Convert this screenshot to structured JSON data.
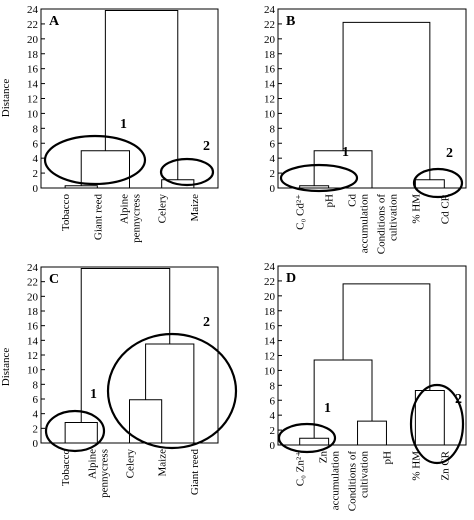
{
  "figure": {
    "y_axis_label": "Distance"
  },
  "chart_data": [
    {
      "type": "dendrogram",
      "panel_label": "A",
      "ylabel": "Distance",
      "ylim": [
        0,
        24
      ],
      "yticks": [
        0,
        2,
        4,
        6,
        8,
        10,
        12,
        14,
        16,
        18,
        20,
        22,
        24
      ],
      "leaves": [
        "Tobacco",
        "Giant reed",
        "Alpine pennycress",
        "Celery",
        "Maize"
      ],
      "merges": [
        {
          "left": "leaf:0",
          "right": "leaf:1",
          "height": 0.3
        },
        {
          "left": "node:0",
          "right": "leaf:2",
          "height": 5.0
        },
        {
          "left": "leaf:3",
          "right": "leaf:4",
          "height": 1.1
        },
        {
          "left": "node:1",
          "right": "node:2",
          "height": 23.8
        }
      ],
      "clusters": [
        {
          "label": "1",
          "members": [
            "Tobacco",
            "Giant reed",
            "Alpine pennycress"
          ]
        },
        {
          "label": "2",
          "members": [
            "Celery",
            "Maize"
          ]
        }
      ]
    },
    {
      "type": "dendrogram",
      "panel_label": "B",
      "ylabel": "Distance",
      "ylim": [
        0,
        24
      ],
      "yticks": [
        0,
        2,
        4,
        6,
        8,
        10,
        12,
        14,
        16,
        18,
        20,
        22,
        24
      ],
      "leaves": [
        "C₀ Cd²⁺",
        "pH",
        "Cd accumulation",
        "Conditions of cultivation",
        "% HM",
        "Cd CR"
      ],
      "merges": [
        {
          "left": "leaf:0",
          "right": "leaf:1",
          "height": 0.3
        },
        {
          "left": "leaf:2",
          "right": "leaf:3",
          "height": 0.0
        },
        {
          "left": "node:0",
          "right": "node:1",
          "height": 5.0
        },
        {
          "left": "leaf:4",
          "right": "leaf:5",
          "height": 1.1
        },
        {
          "left": "node:2",
          "right": "node:3",
          "height": 22.2
        }
      ],
      "clusters": [
        {
          "label": "1",
          "members": [
            "C₀ Cd²⁺",
            "pH"
          ]
        },
        {
          "label": "2",
          "members": [
            "% HM",
            "Cd CR"
          ]
        }
      ]
    },
    {
      "type": "dendrogram",
      "panel_label": "C",
      "ylabel": "Distance",
      "ylim": [
        0,
        24
      ],
      "yticks": [
        0,
        2,
        4,
        6,
        8,
        10,
        12,
        14,
        16,
        18,
        20,
        22,
        24
      ],
      "leaves": [
        "Tobacco",
        "Alpine pennycress",
        "Celery",
        "Maize",
        "Giant reed"
      ],
      "merges": [
        {
          "left": "leaf:0",
          "right": "leaf:1",
          "height": 2.8
        },
        {
          "left": "leaf:2",
          "right": "leaf:3",
          "height": 5.9
        },
        {
          "left": "node:1",
          "right": "leaf:4",
          "height": 13.5
        },
        {
          "left": "node:0",
          "right": "node:2",
          "height": 23.8
        }
      ],
      "clusters": [
        {
          "label": "1",
          "members": [
            "Tobacco",
            "Alpine pennycress"
          ]
        },
        {
          "label": "2",
          "members": [
            "Celery",
            "Maize",
            "Giant reed"
          ]
        }
      ]
    },
    {
      "type": "dendrogram",
      "panel_label": "D",
      "ylabel": "Distance",
      "ylim": [
        0,
        24
      ],
      "yticks": [
        0,
        2,
        4,
        6,
        8,
        10,
        12,
        14,
        16,
        18,
        20,
        22,
        24
      ],
      "leaves": [
        "C₀ Zn²⁺",
        "Zn accumulation",
        "Conditions of cultivation",
        "pH",
        "% HM",
        "Zn CR"
      ],
      "merges": [
        {
          "left": "leaf:0",
          "right": "leaf:1",
          "height": 0.9
        },
        {
          "left": "leaf:2",
          "right": "leaf:3",
          "height": 3.2
        },
        {
          "left": "node:0",
          "right": "node:1",
          "height": 11.4
        },
        {
          "left": "leaf:4",
          "right": "leaf:5",
          "height": 7.3
        },
        {
          "left": "node:2",
          "right": "node:3",
          "height": 21.6
        }
      ],
      "clusters": [
        {
          "label": "1",
          "members": [
            "C₀ Zn²⁺",
            "Zn accumulation"
          ]
        },
        {
          "label": "2",
          "members": [
            "% HM",
            "Zn CR"
          ]
        }
      ]
    }
  ]
}
